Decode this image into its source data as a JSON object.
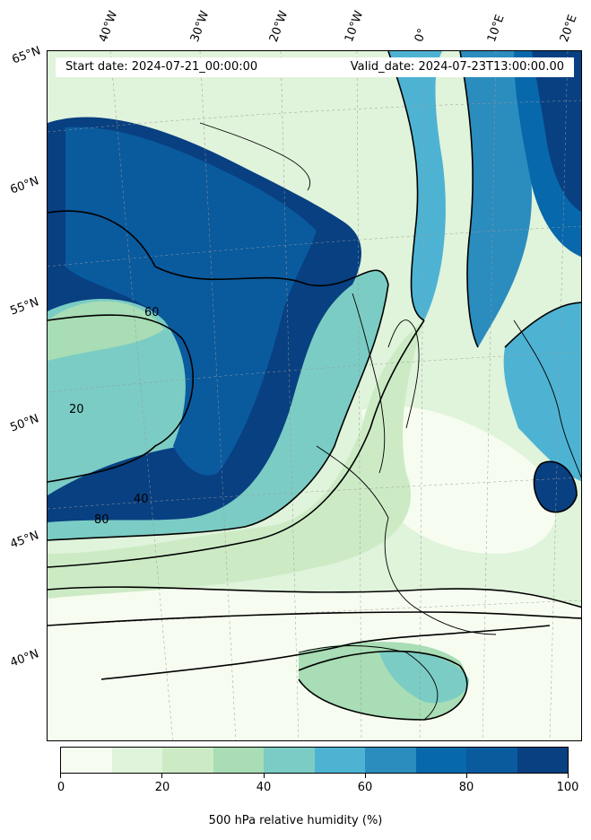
{
  "header": {
    "start_date": "Start date: 2024-07-21_00:00:00",
    "valid_date": "Valid_date: 2024-07-23T13:00:00.00"
  },
  "map": {
    "type": "filled contour map",
    "variable": "500 hPa relative humidity (%)",
    "longitude_labels": [
      "40°W",
      "30°W",
      "20°W",
      "10°W",
      "0°",
      "10°E",
      "20°E"
    ],
    "latitude_labels": [
      "65°N",
      "60°N",
      "55°N",
      "50°N",
      "45°N",
      "40°N"
    ],
    "contour_labels": [
      "20",
      "40",
      "60",
      "80"
    ],
    "colors": {
      "level_0_10": "#f7fcf0",
      "level_10_20": "#e0f3db",
      "level_20_30": "#ccebc5",
      "level_30_40": "#a8ddb5",
      "level_40_50": "#7bccc4",
      "level_50_60": "#4eb3d3",
      "level_60_70": "#2b8cbe",
      "level_70_80": "#0868ac",
      "level_80_90": "#0a5a9e",
      "level_90_100": "#084081"
    }
  },
  "colorbar": {
    "label": "500 hPa relative humidity (%)",
    "ticks": [
      "0",
      "20",
      "40",
      "60",
      "80",
      "100"
    ],
    "range": [
      0,
      100
    ],
    "colors": [
      "#f7fcf0",
      "#e0f3db",
      "#ccebc5",
      "#a8ddb5",
      "#7bccc4",
      "#4eb3d3",
      "#2b8cbe",
      "#0868ac",
      "#0a5a9e",
      "#084081"
    ]
  }
}
